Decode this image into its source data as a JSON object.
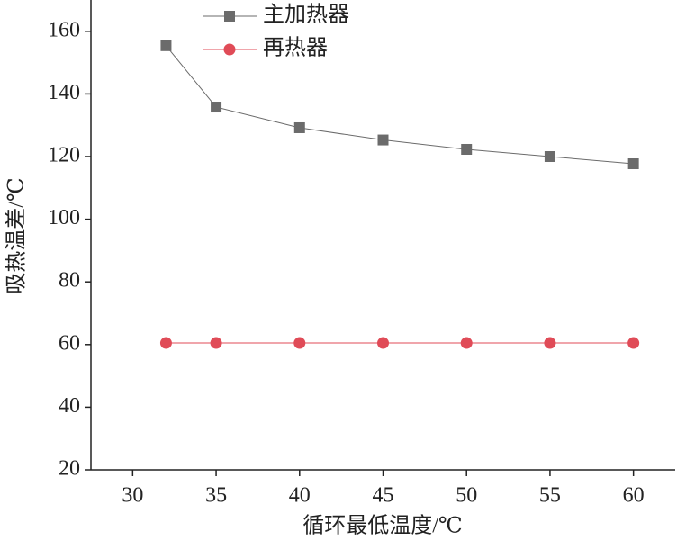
{
  "chart_data": {
    "type": "line",
    "x_label": "循环最低温度/℃",
    "y_label": "吸热温差/℃",
    "x": [
      32,
      35,
      40,
      45,
      50,
      55,
      60
    ],
    "series": [
      {
        "name": "主加热器",
        "color": "#6b6b6b",
        "marker": "square",
        "values": [
          155.4,
          135.8,
          129.2,
          125.3,
          122.3,
          120.0,
          117.7
        ]
      },
      {
        "name": "再热器",
        "color": "#e04b57",
        "marker": "circle",
        "values": [
          60.5,
          60.5,
          60.5,
          60.5,
          60.5,
          60.5,
          60.5
        ]
      }
    ],
    "xlim": [
      27.5,
      62.5
    ],
    "xticks": [
      30,
      35,
      40,
      45,
      50,
      55,
      60
    ],
    "ylim": [
      20,
      170
    ],
    "yticks": [
      20,
      40,
      60,
      80,
      100,
      120,
      140,
      160
    ],
    "legend": "top-left"
  }
}
